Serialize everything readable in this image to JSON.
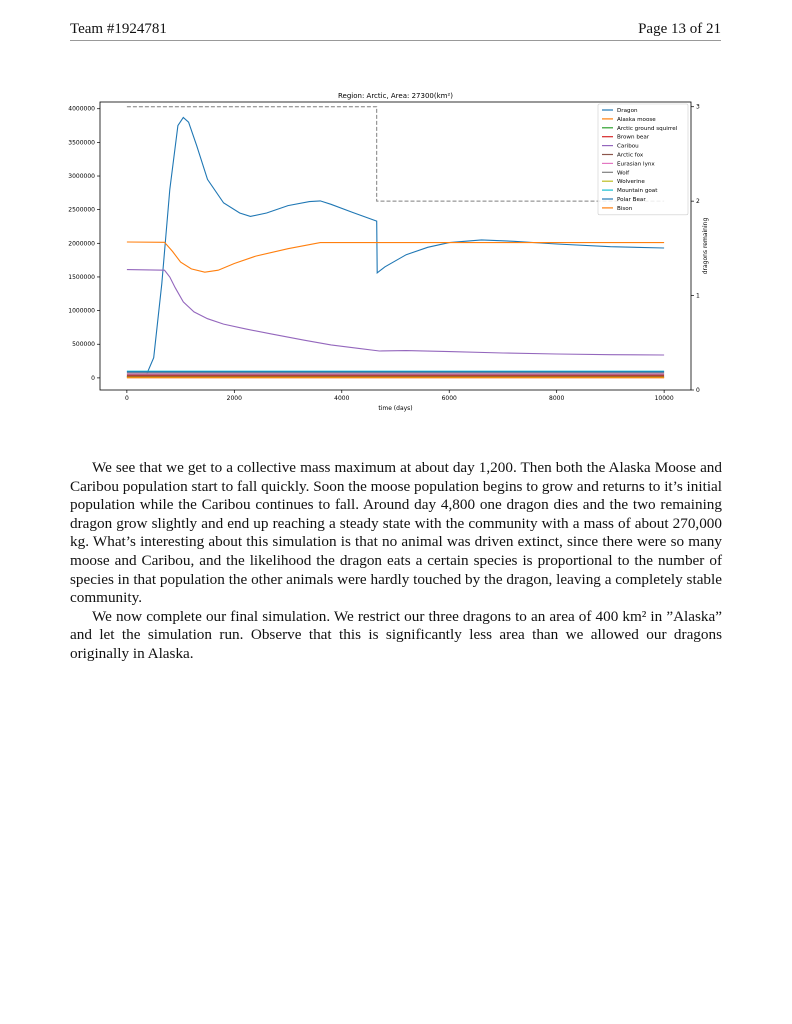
{
  "header": {
    "team": "Team #1924781",
    "page": "Page 13 of 21"
  },
  "chart_data": {
    "type": "line",
    "title": "Region: Arctic, Area: 27300(km²)",
    "xlabel": "time (days)",
    "ylabel": "",
    "y2label": "dragons remaining",
    "xlim": [
      -500,
      10500
    ],
    "ylim": [
      -180000,
      4100000
    ],
    "y2lim": [
      0,
      3.05
    ],
    "xticks": [
      0,
      2000,
      4000,
      6000,
      8000,
      10000
    ],
    "xtick_labels": [
      "0",
      "2000",
      "4000",
      "6000",
      "8000",
      "10000"
    ],
    "yticks": [
      0,
      500000,
      1000000,
      1500000,
      2000000,
      2500000,
      3000000,
      3500000,
      4000000
    ],
    "ytick_labels": [
      "0",
      "500000",
      "1000000",
      "1500000",
      "2000000",
      "2500000",
      "3000000",
      "3500000",
      "4000000"
    ],
    "y2ticks": [
      0,
      1,
      2,
      3
    ],
    "y2tick_labels": [
      "0",
      "1",
      "2",
      "3"
    ],
    "legend_position": "top-right",
    "grid": false,
    "series": [
      {
        "name": "Dragon",
        "color": "#1f77b4",
        "x": [
          0,
          350,
          500,
          650,
          800,
          950,
          1050,
          1150,
          1300,
          1500,
          1800,
          2100,
          2300,
          2600,
          3000,
          3400,
          3600,
          3800,
          4200,
          4650,
          4660,
          4800,
          5200,
          5600,
          6000,
          6600,
          7200,
          8000,
          9000,
          10000
        ],
        "y": [
          20000,
          20000,
          300000,
          1400000,
          2800000,
          3750000,
          3870000,
          3800000,
          3450000,
          2950000,
          2600000,
          2450000,
          2400000,
          2450000,
          2560000,
          2620000,
          2630000,
          2580000,
          2460000,
          2330000,
          1560000,
          1650000,
          1830000,
          1940000,
          2010000,
          2050000,
          2030000,
          1990000,
          1950000,
          1930000
        ]
      },
      {
        "name": "Alaska moose",
        "color": "#ff7f0e",
        "x": [
          0,
          700,
          850,
          1000,
          1200,
          1450,
          1700,
          2000,
          2400,
          3000,
          3600,
          4000,
          6000,
          8000,
          10000
        ],
        "y": [
          2020000,
          2015000,
          1880000,
          1720000,
          1620000,
          1570000,
          1600000,
          1700000,
          1810000,
          1920000,
          2010000,
          2010000,
          2010000,
          2010000,
          2010000
        ]
      },
      {
        "name": "Arctic ground squirrel",
        "color": "#2ca02c",
        "x": [
          0,
          10000
        ],
        "y": [
          15000,
          15000
        ]
      },
      {
        "name": "Brown bear",
        "color": "#d62728",
        "x": [
          0,
          10000
        ],
        "y": [
          30000,
          28000
        ]
      },
      {
        "name": "Caribou",
        "color": "#9467bd",
        "x": [
          0,
          700,
          800,
          900,
          1050,
          1250,
          1500,
          1800,
          2200,
          2700,
          3300,
          3800,
          4300,
          4700,
          5200,
          6000,
          7000,
          8000,
          9000,
          10000
        ],
        "y": [
          1610000,
          1600000,
          1500000,
          1340000,
          1130000,
          980000,
          880000,
          800000,
          730000,
          650000,
          560000,
          490000,
          440000,
          400000,
          405000,
          390000,
          370000,
          355000,
          345000,
          340000
        ]
      },
      {
        "name": "Arctic fox",
        "color": "#8c564b",
        "x": [
          0,
          10000
        ],
        "y": [
          45000,
          45000
        ]
      },
      {
        "name": "Eurasian lynx",
        "color": "#e377c2",
        "x": [
          0,
          10000
        ],
        "y": [
          60000,
          60000
        ]
      },
      {
        "name": "Wolf",
        "color": "#7f7f7f",
        "x": [
          0,
          10000
        ],
        "y": [
          75000,
          75000
        ]
      },
      {
        "name": "Wolverine",
        "color": "#bcbd22",
        "x": [
          0,
          10000
        ],
        "y": [
          8000,
          8000
        ]
      },
      {
        "name": "Mountain goat",
        "color": "#17becf",
        "x": [
          0,
          10000
        ],
        "y": [
          100000,
          100000
        ]
      },
      {
        "name": "Polar Bear",
        "color": "#1f77b4",
        "x": [
          0,
          10000
        ],
        "y": [
          90000,
          90000
        ]
      },
      {
        "name": "Bison",
        "color": "#ff7f0e",
        "x": [
          0,
          10000
        ],
        "y": [
          2000,
          2000
        ]
      }
    ],
    "dragons_remaining": {
      "color": "#7f7f7f",
      "style": "dashed",
      "x": [
        0,
        4650,
        4650,
        10000
      ],
      "y": [
        3,
        3,
        2,
        2
      ]
    }
  },
  "paragraphs": [
    "We see that we get to a collective mass maximum at about day 1,200. Then both the Alaska Moose and Caribou population start to fall quickly. Soon the moose population begins to grow and returns to it’s initial population while the Caribou continues to fall. Around day 4,800 one dragon dies and the two remaining dragon grow slightly and end up reaching a steady state with the community with a mass of about 270,000 kg. What’s interesting about this simulation is that no animal was driven extinct, since there were so many moose and Caribou, and the likelihood the dragon eats a certain species is proportional to the number of species in that population the other animals were hardly touched by the dragon, leaving a completely stable community.",
    "We now complete our final simulation. We restrict our three dragons to an area of 400 km² in ”Alaska” and let the simulation run. Observe that this is significantly less area than we allowed our dragons originally in Alaska."
  ]
}
